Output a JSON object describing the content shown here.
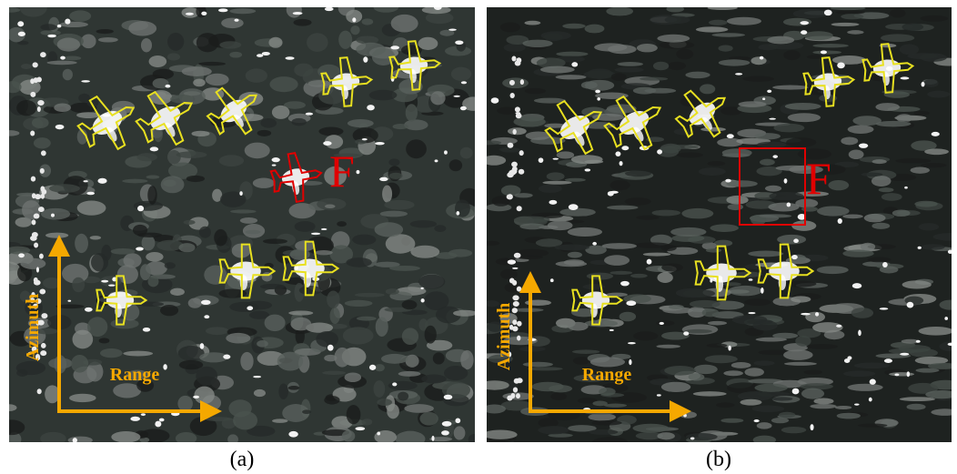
{
  "panels": [
    {
      "caption": "(a)",
      "target_label": "F",
      "azimuth_label": "Azimuth",
      "range_label": "Range"
    },
    {
      "caption": "(b)",
      "target_label": "F",
      "azimuth_label": "Azimuth",
      "range_label": "Range"
    }
  ]
}
